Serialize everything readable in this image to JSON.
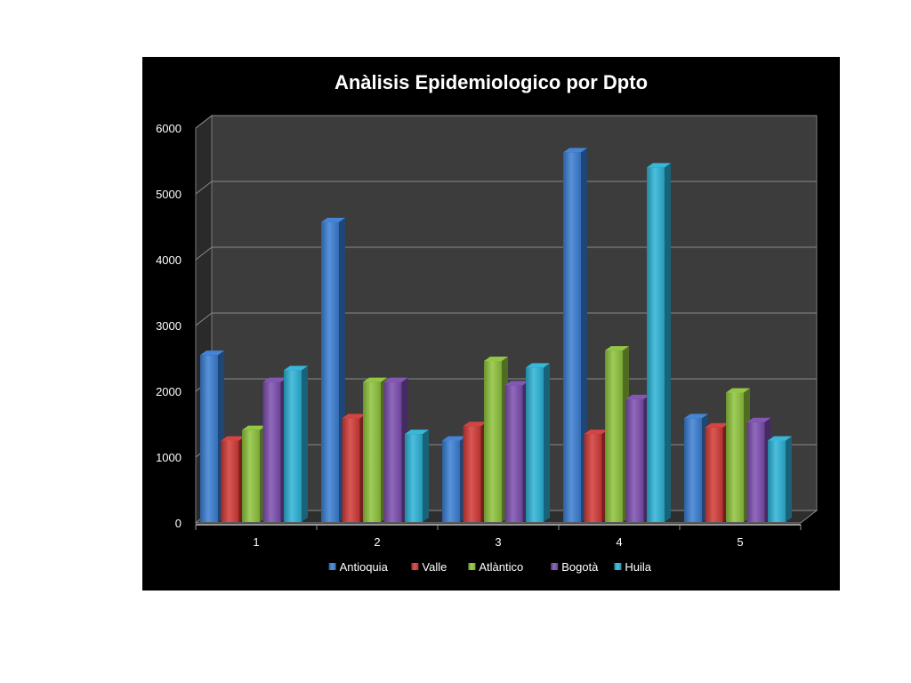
{
  "chart_data": {
    "type": "bar",
    "title": "Anàlisis Epidemiologico por Dpto",
    "xlabel": "",
    "ylabel": "",
    "categories": [
      "1",
      "2",
      "3",
      "4",
      "5"
    ],
    "ylim": [
      0,
      6000
    ],
    "yticks": [
      "0",
      "1000",
      "2000",
      "3000",
      "4000",
      "5000",
      "6000"
    ],
    "grid": true,
    "legend_position": "bottom",
    "series": [
      {
        "name": "Antioquia",
        "color": "#3a7fd4",
        "values": [
          2550,
          4570,
          1250,
          5630,
          1590
        ]
      },
      {
        "name": "Valle",
        "color": "#d33a36",
        "values": [
          1250,
          1590,
          1470,
          1350,
          1450
        ]
      },
      {
        "name": "Atlàntico",
        "color": "#8fc43c",
        "values": [
          1410,
          2140,
          2460,
          2620,
          1980
        ]
      },
      {
        "name": "Bogotà",
        "color": "#7d4eb0",
        "values": [
          2140,
          2140,
          2090,
          1880,
          1530
        ]
      },
      {
        "name": "Huila",
        "color": "#2cb4d8",
        "values": [
          2320,
          1350,
          2360,
          5400,
          1250
        ]
      }
    ]
  }
}
